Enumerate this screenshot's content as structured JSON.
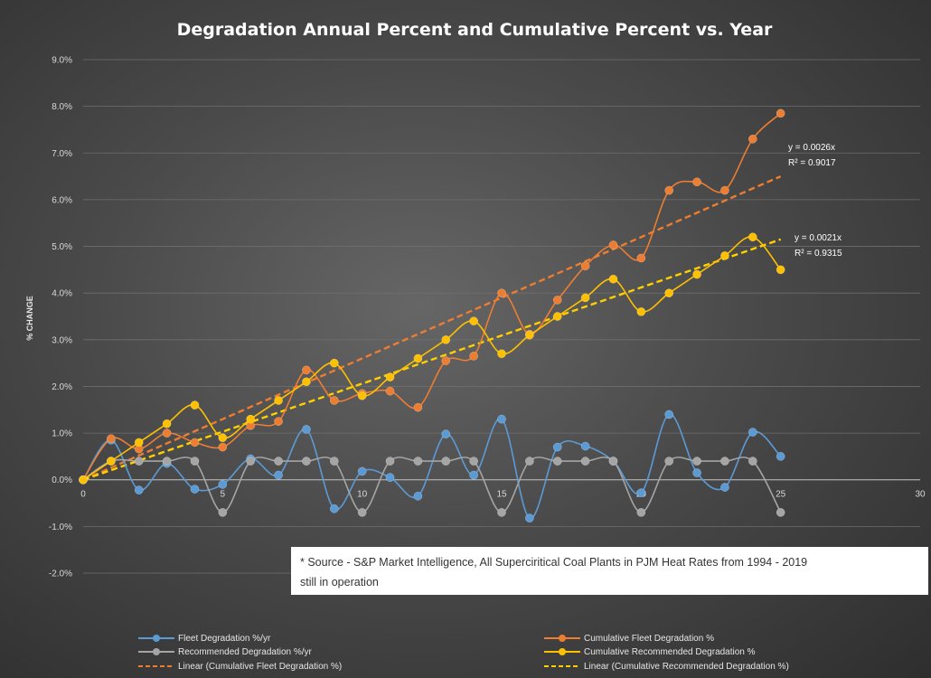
{
  "chart_data": {
    "type": "line",
    "title": "Degradation Annual Percent and Cumulative Percent vs. Year",
    "xlabel": "",
    "ylabel": "% CHANGE",
    "xlim": [
      0,
      30
    ],
    "ylim": [
      -2.0,
      9.0
    ],
    "x_ticks": [
      "0",
      "5",
      "10",
      "15",
      "20",
      "25",
      "30"
    ],
    "y_ticks": [
      "-2.0%",
      "-1.0%",
      "0.0%",
      "1.0%",
      "2.0%",
      "3.0%",
      "4.0%",
      "5.0%",
      "6.0%",
      "7.0%",
      "8.0%",
      "9.0%"
    ],
    "grid": "horizontal",
    "legend_position": "bottom",
    "series": [
      {
        "name": "Fleet Degradation %/yr",
        "color": "#5b9bd5",
        "x": [
          0,
          1,
          2,
          3,
          4,
          5,
          6,
          7,
          8,
          9,
          10,
          11,
          12,
          13,
          14,
          15,
          16,
          17,
          18,
          19,
          20,
          21,
          22,
          23,
          24,
          25
        ],
        "values": [
          0,
          0.85,
          -0.22,
          0.35,
          -0.2,
          -0.1,
          0.45,
          0.1,
          1.08,
          -0.62,
          0.18,
          0.05,
          -0.35,
          0.98,
          0.1,
          1.3,
          -0.82,
          0.7,
          0.72,
          0.4,
          -0.28,
          1.4,
          0.15,
          -0.16,
          1.02,
          0.5
        ]
      },
      {
        "name": "Recommended Degradation %/yr",
        "color": "#a5a5a5",
        "x": [
          0,
          1,
          2,
          3,
          4,
          5,
          6,
          7,
          8,
          9,
          10,
          11,
          12,
          13,
          14,
          15,
          16,
          17,
          18,
          19,
          20,
          21,
          22,
          23,
          24,
          25
        ],
        "values": [
          0,
          0.4,
          0.4,
          0.4,
          0.4,
          -0.7,
          0.4,
          0.4,
          0.4,
          0.4,
          -0.7,
          0.4,
          0.4,
          0.4,
          0.4,
          -0.7,
          0.4,
          0.4,
          0.4,
          0.4,
          -0.7,
          0.4,
          0.4,
          0.4,
          0.4,
          -0.7
        ]
      },
      {
        "name": "Cumulative Fleet Degradation %",
        "color": "#ed7d31",
        "x": [
          0,
          1,
          2,
          3,
          4,
          5,
          6,
          7,
          8,
          9,
          10,
          11,
          12,
          13,
          14,
          15,
          16,
          17,
          18,
          19,
          20,
          21,
          22,
          23,
          24,
          25
        ],
        "values": [
          0,
          0.88,
          0.66,
          1.0,
          0.8,
          0.7,
          1.16,
          1.25,
          2.35,
          1.7,
          1.85,
          1.9,
          1.55,
          2.55,
          2.65,
          4.0,
          3.12,
          3.85,
          4.58,
          5.03,
          4.75,
          6.2,
          6.38,
          6.2,
          7.3,
          7.85
        ]
      },
      {
        "name": "Cumulative Recommended Degradation %",
        "color": "#ffc000",
        "x": [
          0,
          1,
          2,
          3,
          4,
          5,
          6,
          7,
          8,
          9,
          10,
          11,
          12,
          13,
          14,
          15,
          16,
          17,
          18,
          19,
          20,
          21,
          22,
          23,
          24,
          25
        ],
        "values": [
          0,
          0.4,
          0.8,
          1.2,
          1.6,
          0.9,
          1.3,
          1.7,
          2.1,
          2.5,
          1.8,
          2.2,
          2.6,
          3.0,
          3.4,
          2.7,
          3.1,
          3.5,
          3.9,
          4.3,
          3.6,
          4.0,
          4.4,
          4.8,
          5.2,
          4.5
        ]
      }
    ],
    "trendlines": [
      {
        "name": "Linear (Cumulative Fleet Degradation %)",
        "color": "#ed7d31",
        "slope": 0.26,
        "x_range": [
          0,
          25
        ],
        "equation": "y = 0.0026x",
        "r2": "R² = 0.9017"
      },
      {
        "name": "Linear (Cumulative Recommended Degradation %)",
        "color": "#ffd000",
        "slope": 0.206,
        "x_range": [
          0,
          25
        ],
        "equation": "y = 0.0021x",
        "r2": "R² = 0.9315"
      }
    ],
    "annotation": {
      "line1": "* Source - S&P Market Intelligence, All Superciritical Coal Plants in PJM Heat Rates from 1994 - 2019",
      "line2": "still in operation"
    }
  }
}
